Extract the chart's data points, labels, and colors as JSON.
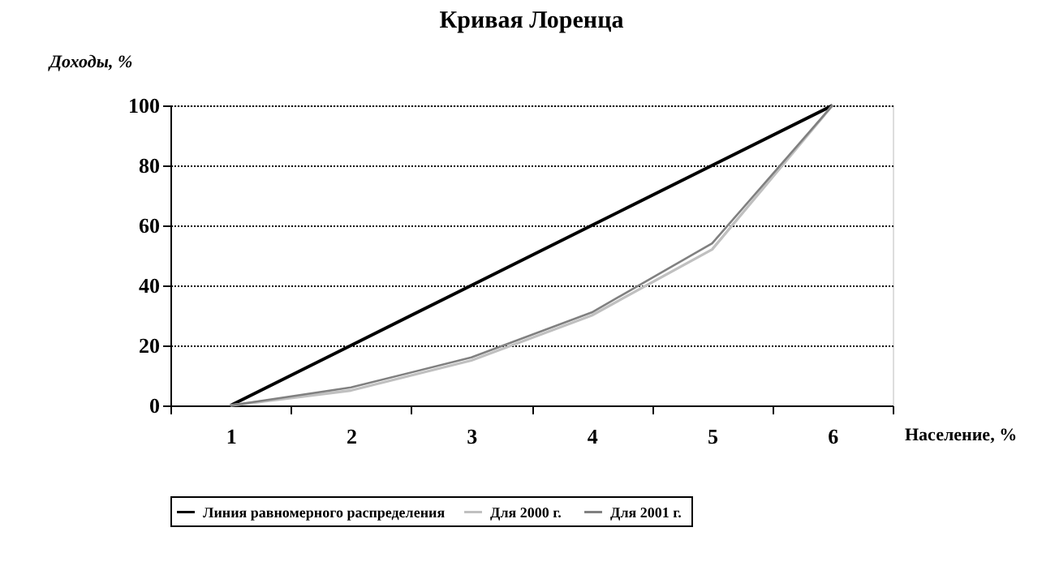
{
  "chart_data": {
    "type": "line",
    "title": "Кривая Лоренца",
    "xlabel": "Население, %",
    "ylabel": "Доходы, %",
    "categories": [
      "1",
      "2",
      "3",
      "4",
      "5",
      "6"
    ],
    "series": [
      {
        "name": "Линия равномерного распределения",
        "color": "#000000",
        "values": [
          0,
          20,
          40,
          60,
          80,
          100
        ]
      },
      {
        "name": "Для 2000  г.",
        "color": "#c0c0c0",
        "values": [
          0,
          5,
          15,
          30,
          52,
          100
        ]
      },
      {
        "name": "Для 2001  г.",
        "color": "#808080",
        "values": [
          0,
          6,
          16,
          31,
          54,
          100
        ]
      }
    ],
    "ylim": [
      0,
      100
    ],
    "yticks": [
      0,
      20,
      40,
      60,
      80,
      100
    ],
    "grid": "y",
    "legend": "bottom",
    "marker": "none",
    "line_style": "solid"
  }
}
